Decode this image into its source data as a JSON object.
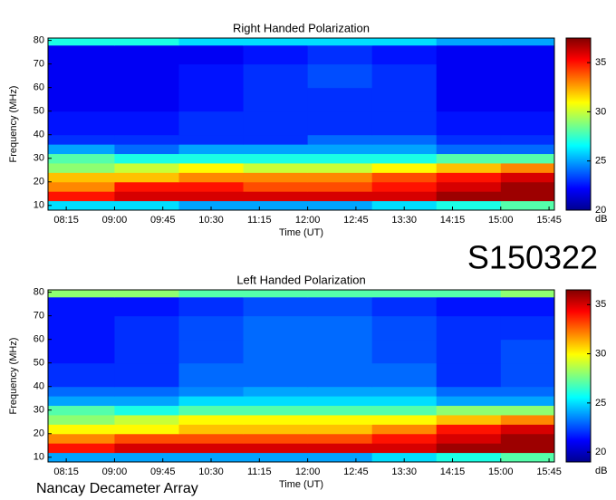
{
  "chart_data": [
    {
      "type": "heatmap",
      "title": "Right Handed Polarization",
      "xlabel": "Time (UT)",
      "ylabel": "Frequency (MHz)",
      "colorbar_label": "dB",
      "xlim": [
        "07:58",
        "15:50"
      ],
      "xticks": [
        "08:15",
        "09:00",
        "09:45",
        "10:30",
        "11:15",
        "12:00",
        "12:45",
        "13:30",
        "14:15",
        "15:00",
        "15:45"
      ],
      "ylim": [
        8,
        81
      ],
      "yticks": [
        10,
        20,
        30,
        40,
        50,
        60,
        70,
        80
      ],
      "zlim": [
        20,
        37.5
      ],
      "zticks": [
        20,
        25,
        30,
        35
      ],
      "colormap": "jet",
      "x_edges": [
        "07:58",
        "09:00",
        "10:00",
        "11:00",
        "12:00",
        "13:00",
        "14:00",
        "15:00",
        "15:50"
      ],
      "y_edges": [
        8,
        12,
        16,
        20,
        24,
        28,
        32,
        36,
        40,
        50,
        60,
        70,
        78,
        81
      ],
      "values": [
        [
          26,
          26,
          25,
          25,
          25,
          26,
          27,
          28
        ],
        [
          35,
          36,
          36,
          36,
          36,
          36,
          37,
          37
        ],
        [
          33,
          35,
          35,
          34,
          34,
          35,
          36,
          37
        ],
        [
          32,
          32,
          33,
          33,
          33,
          34,
          35,
          36
        ],
        [
          29,
          30,
          31,
          30,
          30,
          31,
          32,
          33
        ],
        [
          28,
          27,
          27,
          27,
          27,
          27,
          28,
          28
        ],
        [
          25,
          24,
          25,
          25,
          25,
          25,
          24,
          24
        ],
        [
          23,
          23,
          23,
          23,
          24,
          24,
          23,
          23
        ],
        [
          22.5,
          22.5,
          23,
          23,
          23,
          23,
          22.5,
          22.5
        ],
        [
          22,
          22,
          22.5,
          23,
          23,
          23,
          22,
          22
        ],
        [
          22,
          22,
          22.5,
          23,
          23.5,
          23,
          22,
          22
        ],
        [
          22,
          22,
          22,
          22.5,
          23,
          22.5,
          22,
          22
        ],
        [
          27,
          27,
          26,
          26,
          26,
          26,
          25,
          25
        ]
      ]
    },
    {
      "type": "heatmap",
      "title": "Left Handed Polarization",
      "xlabel": "Time (UT)",
      "ylabel": "Frequency (MHz)",
      "colorbar_label": "dB",
      "xlim": [
        "07:58",
        "15:50"
      ],
      "xticks": [
        "08:15",
        "09:00",
        "09:45",
        "10:30",
        "11:15",
        "12:00",
        "12:45",
        "13:30",
        "14:15",
        "15:00",
        "15:45"
      ],
      "ylim": [
        8,
        81
      ],
      "yticks": [
        10,
        20,
        30,
        40,
        50,
        60,
        70,
        80
      ],
      "zlim": [
        19,
        36.5
      ],
      "zticks": [
        20,
        25,
        30,
        35
      ],
      "colormap": "jet",
      "x_edges": [
        "07:58",
        "09:00",
        "10:00",
        "11:00",
        "12:00",
        "13:00",
        "14:00",
        "15:00",
        "15:50"
      ],
      "y_edges": [
        8,
        12,
        16,
        20,
        24,
        28,
        32,
        36,
        40,
        50,
        60,
        70,
        78,
        81
      ],
      "values": [
        [
          24,
          24,
          24,
          24,
          24,
          25,
          26,
          27
        ],
        [
          34,
          35,
          35,
          35,
          35,
          35,
          36,
          36
        ],
        [
          32,
          33,
          33,
          33,
          33,
          34,
          35,
          36
        ],
        [
          30,
          30,
          31,
          31,
          31,
          32,
          34,
          35
        ],
        [
          28,
          29,
          30,
          30,
          30,
          30,
          31,
          32
        ],
        [
          27,
          26,
          27,
          27,
          27,
          27,
          28,
          28
        ],
        [
          24,
          24,
          25,
          25,
          25,
          25,
          24,
          24
        ],
        [
          23,
          23,
          23.5,
          24,
          24,
          24,
          23,
          23
        ],
        [
          22,
          22,
          23,
          23,
          23,
          23,
          22,
          22.5
        ],
        [
          21.5,
          22,
          22.5,
          23,
          23,
          22.5,
          22,
          22.5
        ],
        [
          21.5,
          22,
          22.5,
          23,
          23,
          22.5,
          22,
          22
        ],
        [
          21.5,
          21.5,
          22,
          22.5,
          22.5,
          22,
          21.5,
          21.5
        ],
        [
          28,
          28,
          27,
          27,
          27,
          27,
          27,
          28
        ]
      ]
    }
  ],
  "session_id": "S150322",
  "footer": "Nancay Decameter Array"
}
